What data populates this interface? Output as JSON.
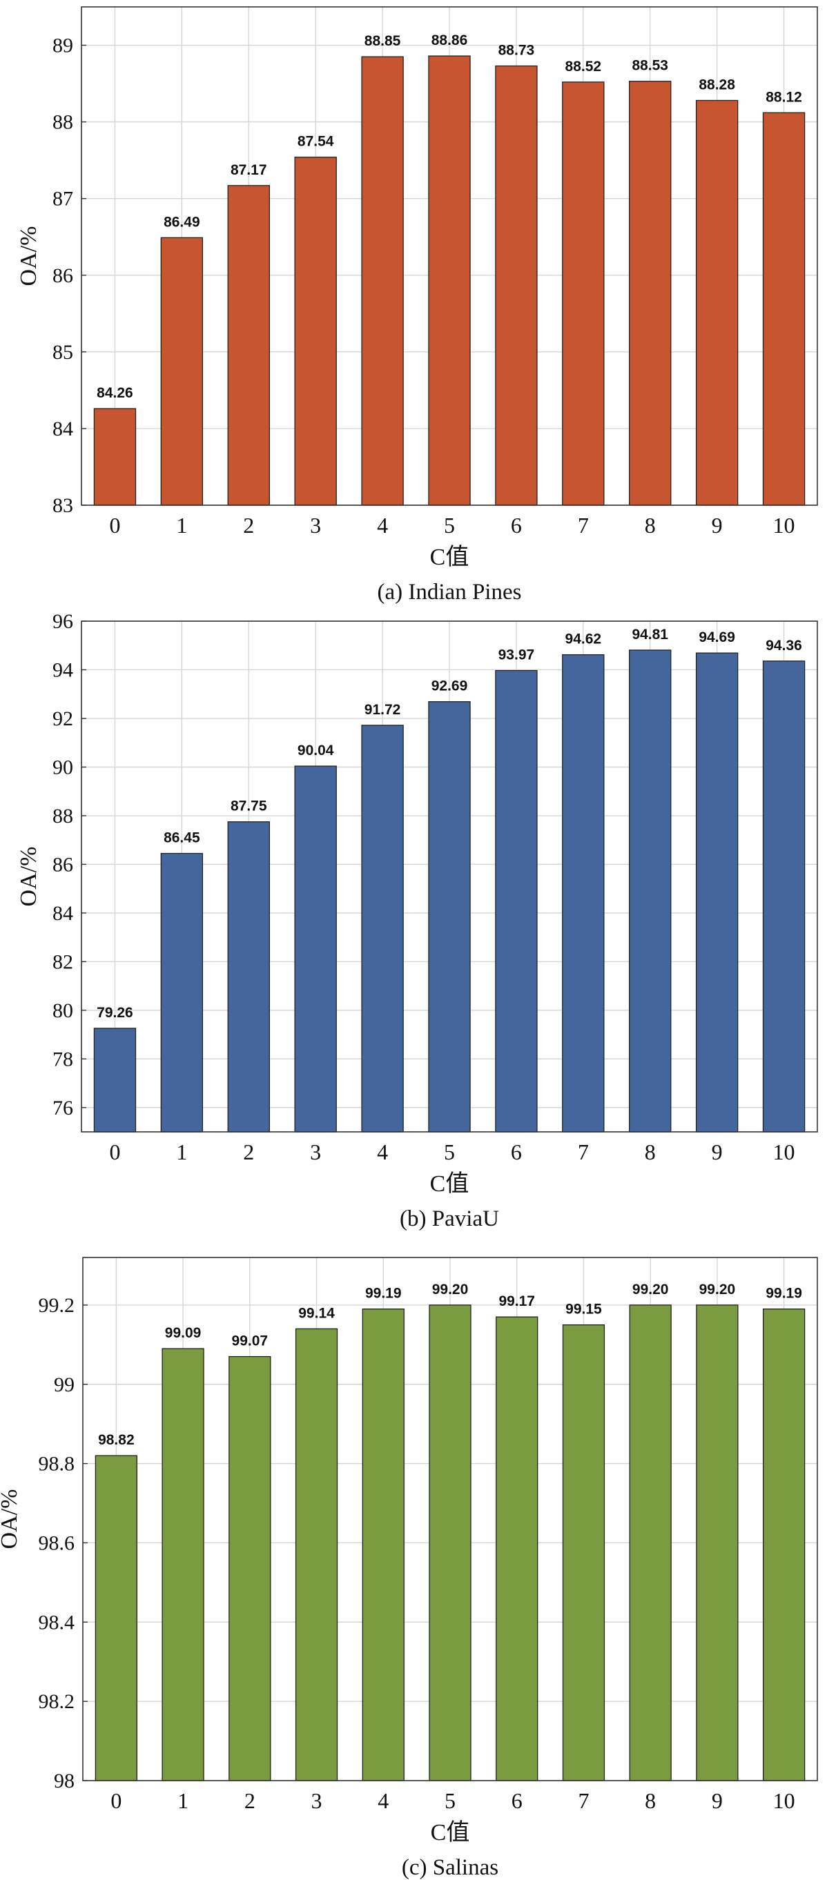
{
  "chart_data": [
    {
      "type": "bar",
      "categories": [
        "0",
        "1",
        "2",
        "3",
        "4",
        "5",
        "6",
        "7",
        "8",
        "9",
        "10"
      ],
      "values": [
        84.26,
        86.49,
        87.17,
        87.54,
        88.85,
        88.86,
        88.73,
        88.52,
        88.53,
        88.28,
        88.12
      ],
      "data_labels": [
        "84.26",
        "86.49",
        "87.17",
        "87.54",
        "88.85",
        "88.86",
        "88.73",
        "88.52",
        "88.53",
        "88.28",
        "88.12"
      ],
      "yticks": [
        "83",
        "84",
        "85",
        "86",
        "87",
        "88",
        "89"
      ],
      "ylim": [
        83,
        89.5
      ],
      "xlabel": "C值",
      "ylabel": "OA/%",
      "caption": "(a) Indian Pines",
      "bar_color": "#c65530",
      "grid": true
    },
    {
      "type": "bar",
      "categories": [
        "0",
        "1",
        "2",
        "3",
        "4",
        "5",
        "6",
        "7",
        "8",
        "9",
        "10"
      ],
      "values": [
        79.26,
        86.45,
        87.75,
        90.04,
        91.72,
        92.69,
        93.97,
        94.62,
        94.81,
        94.69,
        94.36
      ],
      "data_labels": [
        "79.26",
        "86.45",
        "87.75",
        "90.04",
        "91.72",
        "92.69",
        "93.97",
        "94.62",
        "94.81",
        "94.69",
        "94.36"
      ],
      "yticks": [
        "76",
        "78",
        "80",
        "82",
        "84",
        "86",
        "88",
        "90",
        "92",
        "94",
        "96"
      ],
      "ylim": [
        75,
        96
      ],
      "xlabel": "C值",
      "ylabel": "OA/%",
      "caption": "(b) PaviaU",
      "bar_color": "#45669c",
      "grid": true
    },
    {
      "type": "bar",
      "categories": [
        "0",
        "1",
        "2",
        "3",
        "4",
        "5",
        "6",
        "7",
        "8",
        "9",
        "10"
      ],
      "values": [
        98.82,
        99.09,
        99.07,
        99.14,
        99.19,
        99.2,
        99.17,
        99.15,
        99.2,
        99.2,
        99.19
      ],
      "data_labels": [
        "98.82",
        "99.09",
        "99.07",
        "99.14",
        "99.19",
        "99.20",
        "99.17",
        "99.15",
        "99.20",
        "99.20",
        "99.19"
      ],
      "yticks": [
        "98",
        "98.2",
        "98.4",
        "98.6",
        "98.8",
        "99",
        "99.2"
      ],
      "ylim": [
        98,
        99.32
      ],
      "xlabel": "C值",
      "ylabel": "OA/%",
      "caption": "(c) Salinas",
      "bar_color": "#7a9b3f",
      "grid": true
    }
  ]
}
